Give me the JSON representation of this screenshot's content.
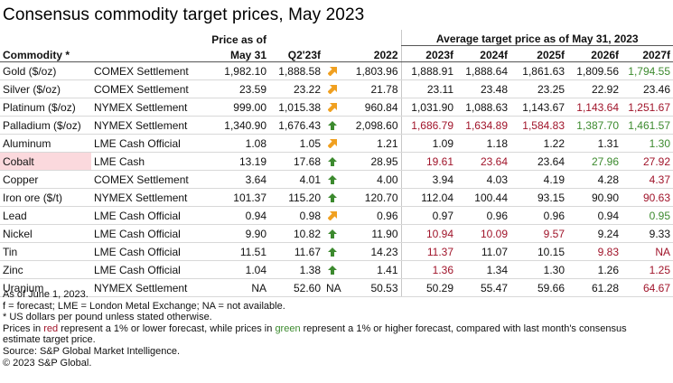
{
  "title": "Consensus commodity target prices, May 2023",
  "headers": {
    "commodity": "Commodity *",
    "price_line1": "Price as of",
    "price_line2": "May 31",
    "q2": "Q2'23f",
    "y2022": "2022",
    "avg": "Average target price as of May 31, 2023",
    "y2023": "2023f",
    "y2024": "2024f",
    "y2025": "2025f",
    "y2026": "2026f",
    "y2027": "2027f"
  },
  "rows": [
    {
      "name": "Gold ($/oz)",
      "exchange": "COMEX Settlement",
      "price": "1,982.10",
      "q2": "1,888.58",
      "arrow": "sideways",
      "y2022": "1,803.96",
      "f": [
        [
          "1,888.91",
          ""
        ],
        [
          "1,888.64",
          ""
        ],
        [
          "1,861.63",
          ""
        ],
        [
          "1,809.56",
          ""
        ],
        [
          "1,794.55",
          "green"
        ]
      ]
    },
    {
      "name": "Silver ($/oz)",
      "exchange": "COMEX Settlement",
      "price": "23.59",
      "q2": "23.22",
      "arrow": "sideways",
      "y2022": "21.78",
      "f": [
        [
          "23.11",
          ""
        ],
        [
          "23.48",
          ""
        ],
        [
          "23.25",
          ""
        ],
        [
          "22.92",
          ""
        ],
        [
          "23.46",
          ""
        ]
      ]
    },
    {
      "name": "Platinum ($/oz)",
      "exchange": "NYMEX Settlement",
      "price": "999.00",
      "q2": "1,015.38",
      "arrow": "sideways",
      "y2022": "960.84",
      "f": [
        [
          "1,031.90",
          ""
        ],
        [
          "1,088.63",
          ""
        ],
        [
          "1,143.67",
          ""
        ],
        [
          "1,143.64",
          "red"
        ],
        [
          "1,251.67",
          "red"
        ]
      ]
    },
    {
      "name": "Palladium ($/oz)",
      "exchange": "NYMEX Settlement",
      "price": "1,340.90",
      "q2": "1,676.43",
      "arrow": "up",
      "y2022": "2,098.60",
      "f": [
        [
          "1,686.79",
          "red"
        ],
        [
          "1,634.89",
          "red"
        ],
        [
          "1,584.83",
          "red"
        ],
        [
          "1,387.70",
          "green"
        ],
        [
          "1,461.57",
          "green"
        ]
      ]
    },
    {
      "name": "Aluminum",
      "exchange": "LME Cash Official",
      "price": "1.08",
      "q2": "1.05",
      "arrow": "sideways",
      "y2022": "1.21",
      "f": [
        [
          "1.09",
          ""
        ],
        [
          "1.18",
          ""
        ],
        [
          "1.22",
          ""
        ],
        [
          "1.31",
          ""
        ],
        [
          "1.30",
          "green"
        ]
      ]
    },
    {
      "name": "Cobalt",
      "exchange": "LME Cash",
      "price": "13.19",
      "q2": "17.68",
      "arrow": "up",
      "y2022": "28.95",
      "highlight": true,
      "f": [
        [
          "19.61",
          "red"
        ],
        [
          "23.64",
          "red"
        ],
        [
          "23.64",
          ""
        ],
        [
          "27.96",
          "green"
        ],
        [
          "27.92",
          "red"
        ]
      ]
    },
    {
      "name": "Copper",
      "exchange": "COMEX Settlement",
      "price": "3.64",
      "q2": "4.01",
      "arrow": "up",
      "y2022": "4.00",
      "f": [
        [
          "3.94",
          ""
        ],
        [
          "4.03",
          ""
        ],
        [
          "4.19",
          ""
        ],
        [
          "4.28",
          ""
        ],
        [
          "4.37",
          "red"
        ]
      ]
    },
    {
      "name": "Iron ore ($/t)",
      "exchange": "NYMEX Settlement",
      "price": "101.37",
      "q2": "115.20",
      "arrow": "up",
      "y2022": "120.70",
      "f": [
        [
          "112.04",
          ""
        ],
        [
          "100.44",
          ""
        ],
        [
          "93.15",
          ""
        ],
        [
          "90.90",
          ""
        ],
        [
          "90.63",
          "red"
        ]
      ]
    },
    {
      "name": "Lead",
      "exchange": "LME Cash Official",
      "price": "0.94",
      "q2": "0.98",
      "arrow": "sideways",
      "y2022": "0.96",
      "f": [
        [
          "0.97",
          ""
        ],
        [
          "0.96",
          ""
        ],
        [
          "0.96",
          ""
        ],
        [
          "0.94",
          ""
        ],
        [
          "0.95",
          "green"
        ]
      ]
    },
    {
      "name": "Nickel",
      "exchange": "LME Cash Official",
      "price": "9.90",
      "q2": "10.82",
      "arrow": "up",
      "y2022": "11.90",
      "f": [
        [
          "10.94",
          "red"
        ],
        [
          "10.09",
          "red"
        ],
        [
          "9.57",
          "red"
        ],
        [
          "9.24",
          ""
        ],
        [
          "9.33",
          ""
        ]
      ]
    },
    {
      "name": "Tin",
      "exchange": "LME Cash Official",
      "price": "11.51",
      "q2": "11.67",
      "arrow": "up",
      "y2022": "14.23",
      "f": [
        [
          "11.37",
          "red"
        ],
        [
          "11.07",
          ""
        ],
        [
          "10.15",
          ""
        ],
        [
          "9.83",
          "red"
        ],
        [
          "NA",
          "red"
        ]
      ]
    },
    {
      "name": "Zinc",
      "exchange": "LME Cash Official",
      "price": "1.04",
      "q2": "1.38",
      "arrow": "up",
      "y2022": "1.41",
      "f": [
        [
          "1.36",
          "red"
        ],
        [
          "1.34",
          ""
        ],
        [
          "1.30",
          ""
        ],
        [
          "1.26",
          ""
        ],
        [
          "1.25",
          "red"
        ]
      ]
    },
    {
      "name": "Uranium",
      "exchange": "NYMEX Settlement",
      "price": "NA",
      "q2": "52.60",
      "arrow": "NA",
      "y2022": "50.53",
      "f": [
        [
          "50.29",
          ""
        ],
        [
          "55.47",
          ""
        ],
        [
          "59.66",
          ""
        ],
        [
          "61.28",
          ""
        ],
        [
          "64.67",
          "red"
        ]
      ]
    }
  ],
  "notes": {
    "line1": "As of June 1, 2023.",
    "line2": "f = forecast; LME = London Metal Exchange; NA = not available.",
    "line3": "* US dollars per pound unless stated otherwise.",
    "line4_a": "Prices in ",
    "line4_red": "red",
    "line4_b": " represent a 1% or lower forecast, while prices in ",
    "line4_green": "green",
    "line4_c": " represent a 1% or higher forecast, compared with last month's consensus",
    "line5": "estimate target price.",
    "line6": "Source: S&P Global Market Intelligence.",
    "line7": "© 2023 S&P Global."
  },
  "colors": {
    "red": "#a0142a",
    "green": "#3c8a2e",
    "arrow_up": "#3c8a2e",
    "arrow_sideways": "#f0a020",
    "highlight": "#fbd9dd"
  },
  "icons": {
    "up": "arrow-up-icon",
    "sideways": "arrow-sideways-icon"
  }
}
